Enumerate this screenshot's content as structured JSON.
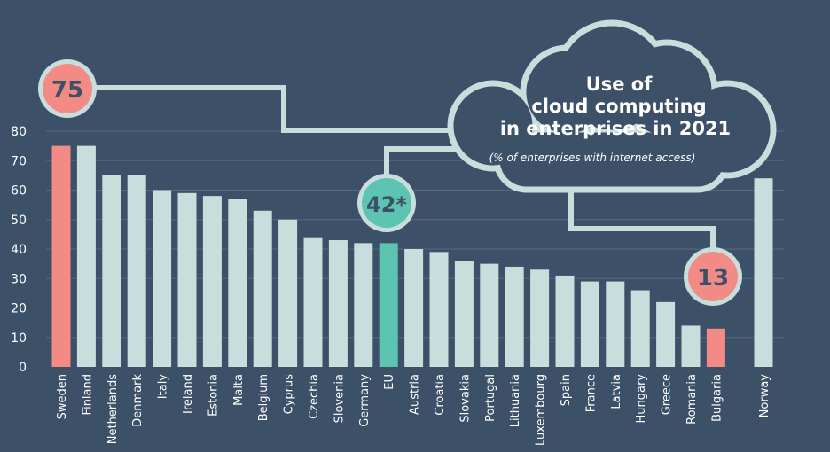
{
  "chart_data": {
    "type": "bar",
    "title": "Use of cloud computing in enterprises in 2021",
    "title_lines": [
      "Use of",
      "cloud computing",
      "in enterprises in 2021"
    ],
    "subtitle": "(% of enterprises with internet access)",
    "categories": [
      "Sweden",
      "Finland",
      "Netherlands",
      "Denmark",
      "Italy",
      "Ireland",
      "Estonia",
      "Malta",
      "Belgium",
      "Cyprus",
      "Czechia",
      "Slovenia",
      "Germany",
      "EU",
      "Austria",
      "Croatia",
      "Slovakia",
      "Portugal",
      "Lithuania",
      "Luxembourg",
      "Spain",
      "France",
      "Latvia",
      "Hungary",
      "Greece",
      "Romania",
      "Bulgaria",
      "Norway"
    ],
    "values": [
      75,
      75,
      65,
      65,
      60,
      59,
      58,
      57,
      53,
      50,
      44,
      43,
      42,
      42,
      40,
      39,
      36,
      35,
      34,
      33,
      31,
      29,
      29,
      26,
      22,
      14,
      13,
      64
    ],
    "ylim": [
      0,
      80
    ],
    "yticks": [
      0,
      10,
      20,
      30,
      40,
      50,
      60,
      70,
      80
    ],
    "grid": true,
    "highlights": [
      {
        "category": "Sweden",
        "label": "75",
        "color": "#f28b86"
      },
      {
        "category": "EU",
        "label": "42*",
        "color": "#5cc4b0"
      },
      {
        "category": "Bulgaria",
        "label": "13",
        "color": "#f28b86"
      }
    ],
    "colors": {
      "background": "#3c5068",
      "bar": "#c8dedd",
      "callout_outline": "#c8dedd",
      "max_min": "#f28b86",
      "eu": "#5cc4b0",
      "text": "#ffffff",
      "callout_text": "#3c5068"
    }
  }
}
